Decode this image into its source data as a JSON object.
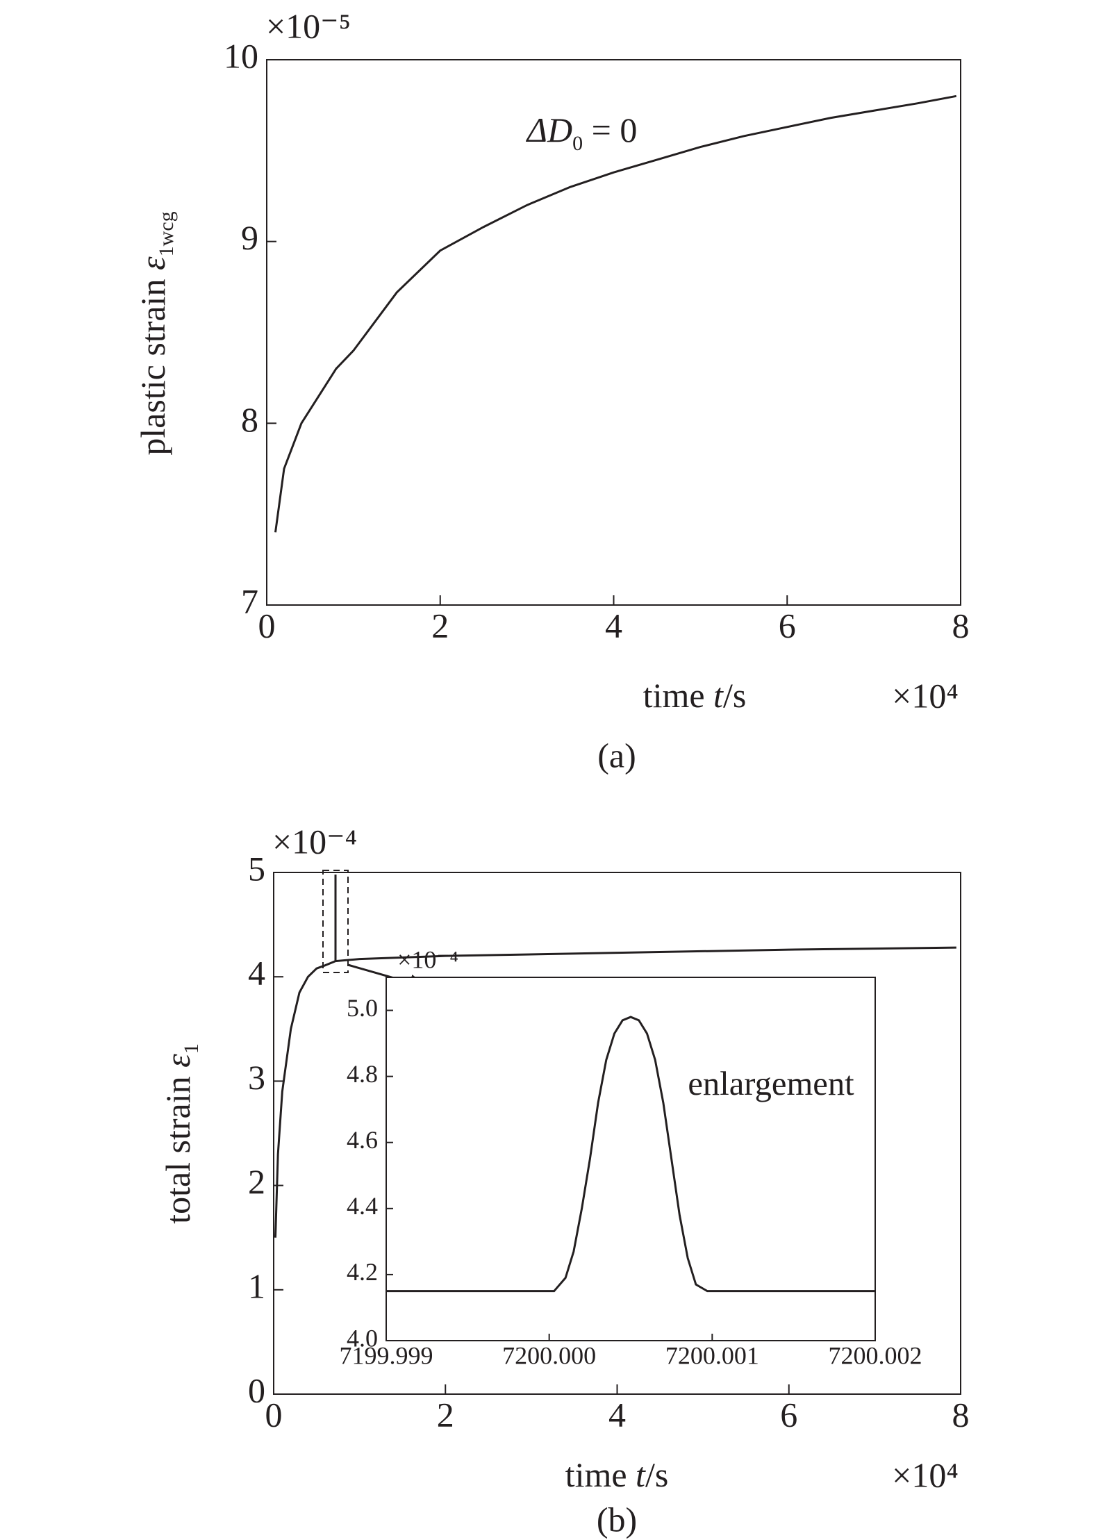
{
  "chart_data": [
    {
      "type": "line",
      "panel_label": "(a)",
      "x_label": {
        "text": "time ",
        "var": "t",
        "unit": "/s"
      },
      "x_multiplier": "×10⁴",
      "y_label": {
        "text": "plastic strain ",
        "symbol": "ε",
        "subscript": "1wcg"
      },
      "y_multiplier": "×10⁻⁵",
      "annotation": {
        "text": "ΔD",
        "subscript": "0",
        "rest": " = 0"
      },
      "xlim": [
        0,
        8
      ],
      "xticks": [
        0,
        2,
        4,
        6,
        8
      ],
      "ylim": [
        7,
        10
      ],
      "yticks": [
        7,
        8,
        9,
        10
      ],
      "color": "#231f20",
      "x": [
        0.1,
        0.2,
        0.4,
        0.6,
        0.8,
        1.0,
        1.5,
        2,
        2.5,
        3,
        3.5,
        4,
        4.5,
        5,
        5.5,
        6,
        6.5,
        7,
        7.5,
        7.95
      ],
      "values": [
        7.4,
        7.75,
        8.0,
        8.15,
        8.3,
        8.4,
        8.72,
        8.95,
        9.08,
        9.2,
        9.3,
        9.38,
        9.45,
        9.52,
        9.58,
        9.63,
        9.68,
        9.72,
        9.76,
        9.8
      ]
    },
    {
      "type": "line",
      "panel_label": "(b)",
      "x_label": {
        "text": "time ",
        "var": "t",
        "unit": "/s"
      },
      "x_multiplier": "×10⁴",
      "y_label": {
        "text": "total strain ",
        "symbol": "ε",
        "subscript": "1"
      },
      "y_multiplier": "×10⁻⁴",
      "xlim": [
        0,
        8
      ],
      "xticks": [
        0,
        2,
        4,
        6,
        8
      ],
      "ylim": [
        0,
        5
      ],
      "yticks": [
        0,
        1,
        2,
        3,
        4,
        5
      ],
      "color": "#231f20",
      "x": [
        0.02,
        0.05,
        0.1,
        0.2,
        0.3,
        0.4,
        0.5,
        0.6,
        0.72,
        0.72,
        0.72,
        1,
        2,
        4,
        6,
        7.95
      ],
      "values": [
        1.5,
        2.3,
        2.9,
        3.5,
        3.85,
        4.0,
        4.08,
        4.11,
        4.15,
        4.98,
        4.15,
        4.17,
        4.2,
        4.23,
        4.26,
        4.28
      ]
    },
    {
      "type": "line",
      "annotation_text": "enlargement",
      "y_multiplier": "×10⁻⁴",
      "xlim": [
        7199.999,
        7200.002
      ],
      "xticks": [
        7199.999,
        {
          "value": 7200,
          "label": "7200.000"
        },
        7200.001,
        7200.002
      ],
      "ylim": [
        4,
        5.1
      ],
      "yticks": [
        {
          "value": 4,
          "label": "4.0"
        },
        {
          "value": 4.2,
          "label": "4.2"
        },
        {
          "value": 4.4,
          "label": "4.4"
        },
        {
          "value": 4.6,
          "label": "4.6"
        },
        {
          "value": 4.8,
          "label": "4.8"
        },
        {
          "value": 5,
          "label": "5.0"
        }
      ],
      "color": "#231f20",
      "x": [
        7199.999,
        7200.00003,
        7200.0001,
        7200.00015,
        7200.0002,
        7200.00025,
        7200.0003,
        7200.00035,
        7200.0004,
        7200.00045,
        7200.0005,
        7200.00055,
        7200.0006,
        7200.00065,
        7200.0007,
        7200.00075,
        7200.0008,
        7200.00085,
        7200.0009,
        7200.00097,
        7200.002
      ],
      "values": [
        4.15,
        4.15,
        4.19,
        4.27,
        4.4,
        4.55,
        4.72,
        4.85,
        4.93,
        4.97,
        4.98,
        4.97,
        4.93,
        4.85,
        4.72,
        4.55,
        4.38,
        4.25,
        4.17,
        4.15,
        4.15
      ]
    }
  ]
}
